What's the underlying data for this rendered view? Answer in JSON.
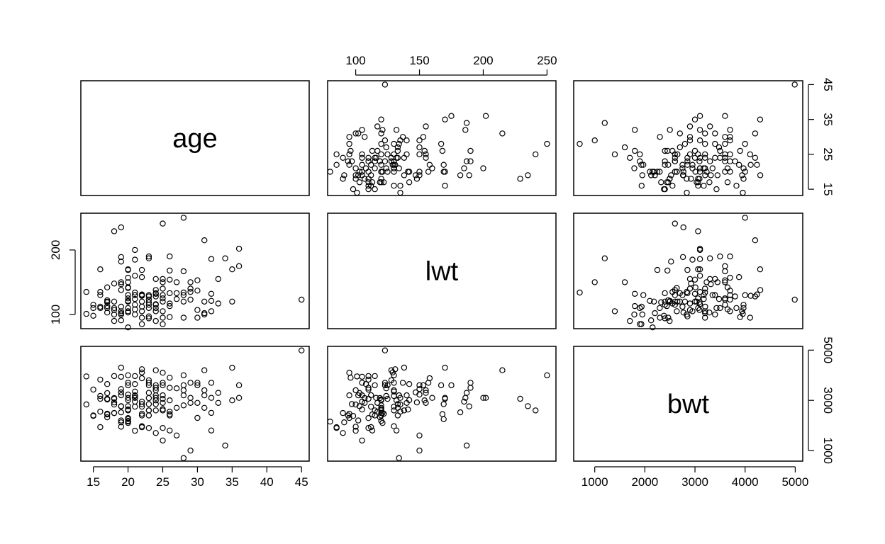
{
  "chart_data": {
    "type": "scatter-matrix",
    "variables": [
      {
        "name": "age",
        "range": [
          13.2,
          46.1
        ],
        "ticks": [
          15,
          20,
          25,
          30,
          35,
          40,
          45
        ],
        "tick_labels": [
          "15",
          "20",
          "25",
          "30",
          "35",
          "40",
          "45"
        ]
      },
      {
        "name": "lwt",
        "range": [
          78,
          257
        ],
        "ticks": [
          100,
          150,
          200,
          250
        ],
        "tick_labels": [
          "100",
          "150",
          "200",
          "250"
        ],
        "left_ticks": [
          100,
          200
        ],
        "left_tick_labels": [
          "100",
          "200"
        ]
      },
      {
        "name": "bwt",
        "range": [
          580,
          5150
        ],
        "ticks": [
          1000,
          2000,
          3000,
          4000,
          5000
        ],
        "tick_labels": [
          "1000",
          "2000",
          "3000",
          "4000",
          "5000"
        ],
        "right_ticks": [
          1000,
          3000,
          5000
        ],
        "right_tick_labels": [
          "1000",
          "3000",
          "5000"
        ]
      }
    ],
    "age_right_ticks": [
      15,
      25,
      35,
      45
    ],
    "age_right_tick_labels": [
      "15",
      "25",
      "35",
      "45"
    ],
    "observations": [
      [
        14,
        135,
        2836
      ],
      [
        14,
        101,
        3955
      ],
      [
        15,
        98,
        2381
      ],
      [
        15,
        115,
        2400
      ],
      [
        15,
        110,
        3430
      ],
      [
        16,
        135,
        2551
      ],
      [
        16,
        170,
        3062
      ],
      [
        16,
        110,
        3827
      ],
      [
        16,
        112,
        1935
      ],
      [
        16,
        130,
        3175
      ],
      [
        17,
        120,
        3033
      ],
      [
        17,
        113,
        2438
      ],
      [
        17,
        142,
        3650
      ],
      [
        17,
        122,
        2466
      ],
      [
        17,
        110,
        3062
      ],
      [
        17,
        119,
        2325
      ],
      [
        17,
        103,
        3288
      ],
      [
        18,
        100,
        2835
      ],
      [
        18,
        229,
        3062
      ],
      [
        18,
        120,
        2495
      ],
      [
        18,
        107,
        3090
      ],
      [
        18,
        148,
        2920
      ],
      [
        18,
        90,
        2495
      ],
      [
        18,
        110,
        3969
      ],
      [
        19,
        182,
        2523
      ],
      [
        19,
        189,
        2760
      ],
      [
        19,
        235,
        2769
      ],
      [
        19,
        147,
        3317
      ],
      [
        19,
        150,
        3450
      ],
      [
        19,
        105,
        3940
      ],
      [
        19,
        102,
        2200
      ],
      [
        19,
        100,
        1950
      ],
      [
        19,
        138,
        4303
      ],
      [
        19,
        112,
        3203
      ],
      [
        19,
        91,
        2125
      ],
      [
        20,
        125,
        3600
      ],
      [
        20,
        105,
        2637
      ],
      [
        20,
        121,
        2100
      ],
      [
        20,
        170,
        3100
      ],
      [
        20,
        141,
        2637
      ],
      [
        20,
        120,
        2182
      ],
      [
        20,
        150,
        3232
      ],
      [
        20,
        142,
        3009
      ],
      [
        20,
        103,
        2770
      ],
      [
        20,
        169,
        2250
      ],
      [
        20,
        80,
        2155
      ],
      [
        20,
        110,
        2296
      ],
      [
        20,
        157,
        3700
      ],
      [
        20,
        130,
        4000
      ],
      [
        20,
        120,
        2600
      ],
      [
        21,
        160,
        3100
      ],
      [
        21,
        108,
        3650
      ],
      [
        21,
        185,
        2950
      ],
      [
        21,
        200,
        3100
      ],
      [
        21,
        124,
        3175
      ],
      [
        21,
        115,
        3969
      ],
      [
        21,
        130,
        2750
      ],
      [
        21,
        100,
        1790
      ],
      [
        21,
        134,
        3200
      ],
      [
        21,
        130,
        3350
      ],
      [
        22,
        95,
        2466
      ],
      [
        22,
        130,
        1970
      ],
      [
        22,
        120,
        2400
      ],
      [
        22,
        158,
        3880
      ],
      [
        22,
        169,
        2850
      ],
      [
        22,
        112,
        2750
      ],
      [
        22,
        85,
        1930
      ],
      [
        22,
        129,
        4111
      ],
      [
        22,
        105,
        2950
      ],
      [
        22,
        131,
        4238
      ],
      [
        23,
        119,
        3090
      ],
      [
        23,
        97,
        2850
      ],
      [
        23,
        115,
        2600
      ],
      [
        23,
        190,
        3700
      ],
      [
        23,
        130,
        2600
      ],
      [
        23,
        128,
        3800
      ],
      [
        23,
        187,
        3300
      ],
      [
        23,
        94,
        2400
      ],
      [
        23,
        110,
        1900
      ],
      [
        23,
        123,
        3600
      ],
      [
        24,
        132,
        3000
      ],
      [
        24,
        138,
        2600
      ],
      [
        24,
        105,
        3200
      ],
      [
        24,
        128,
        4200
      ],
      [
        24,
        110,
        3500
      ],
      [
        24,
        90,
        1700
      ],
      [
        24,
        155,
        3400
      ],
      [
        24,
        116,
        3100
      ],
      [
        24,
        133,
        2850
      ],
      [
        24,
        115,
        3600
      ],
      [
        25,
        241,
        2600
      ],
      [
        25,
        130,
        3700
      ],
      [
        25,
        105,
        1400
      ],
      [
        25,
        140,
        3200
      ],
      [
        25,
        95,
        4100
      ],
      [
        25,
        155,
        2900
      ],
      [
        25,
        125,
        3060
      ],
      [
        25,
        85,
        1900
      ],
      [
        25,
        120,
        2650
      ],
      [
        25,
        150,
        3600
      ],
      [
        26,
        113,
        1800
      ],
      [
        26,
        117,
        2550
      ],
      [
        26,
        190,
        3500
      ],
      [
        26,
        154,
        3000
      ],
      [
        26,
        168,
        2450
      ],
      [
        26,
        133,
        2400
      ],
      [
        26,
        96,
        3900
      ],
      [
        27,
        124,
        3480
      ],
      [
        27,
        150,
        1600
      ],
      [
        27,
        133,
        2700
      ],
      [
        28,
        120,
        2800
      ],
      [
        28,
        167,
        3600
      ],
      [
        28,
        95,
        3200
      ],
      [
        28,
        250,
        4000
      ],
      [
        28,
        130,
        3400
      ],
      [
        28,
        134,
        700
      ],
      [
        29,
        123,
        3700
      ],
      [
        29,
        150,
        1000
      ],
      [
        29,
        140,
        2900
      ],
      [
        29,
        135,
        3100
      ],
      [
        30,
        153,
        3600
      ],
      [
        30,
        107,
        2900
      ],
      [
        30,
        95,
        2300
      ],
      [
        30,
        137,
        3700
      ],
      [
        31,
        102,
        3200
      ],
      [
        31,
        100,
        3400
      ],
      [
        31,
        215,
        4200
      ],
      [
        31,
        120,
        2700
      ],
      [
        32,
        121,
        2500
      ],
      [
        32,
        186,
        3100
      ],
      [
        32,
        132,
        1800
      ],
      [
        32,
        105,
        3700
      ],
      [
        33,
        117,
        2900
      ],
      [
        33,
        155,
        3300
      ],
      [
        34,
        187,
        1200
      ],
      [
        35,
        170,
        4300
      ],
      [
        35,
        120,
        3000
      ],
      [
        36,
        202,
        3100
      ],
      [
        36,
        175,
        3600
      ],
      [
        45,
        123,
        4990
      ]
    ]
  }
}
